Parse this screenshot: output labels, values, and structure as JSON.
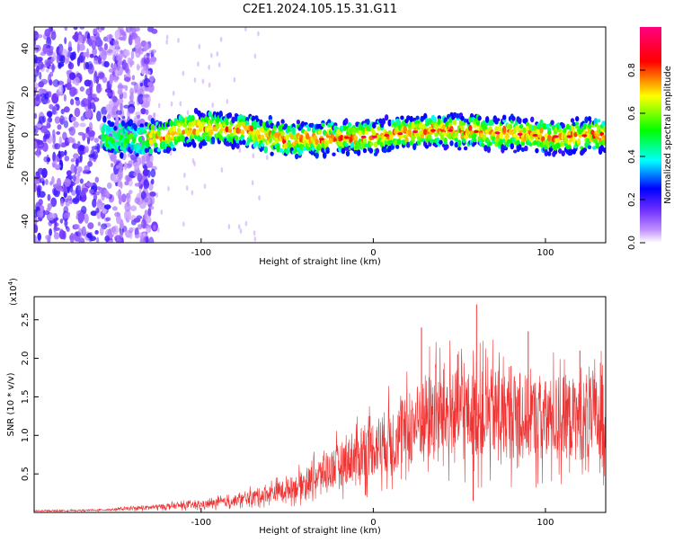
{
  "figure_title": "C2E1.2024.105.15.31.G11",
  "chart_data": [
    {
      "type": "heatmap",
      "xlabel": "Height of straight line (km)",
      "ylabel": "Frequency (Hz)",
      "xlim": [
        -197,
        135
      ],
      "ylim": [
        -50,
        50
      ],
      "xticks": [
        -100,
        0,
        100
      ],
      "yticks": [
        -40,
        -20,
        0,
        20,
        40
      ],
      "colorbar": {
        "label": "Normalized spectral amplitude",
        "range": [
          0,
          1
        ],
        "ticks": [
          0.0,
          0.2,
          0.4,
          0.6,
          0.8
        ],
        "colors": [
          "#ffffff",
          "#a060ff",
          "#0000ff",
          "#00ffff",
          "#00ff00",
          "#ffff00",
          "#ff0000",
          "#ff0080"
        ]
      },
      "ridge": {
        "x": [
          -157,
          -140,
          -120,
          -110,
          -90,
          -70,
          -50,
          -30,
          -10,
          0,
          10,
          30,
          50,
          70,
          90,
          110,
          130
        ],
        "frequency": [
          -1,
          -2,
          -1,
          3,
          3,
          1,
          -2,
          -2,
          -1,
          -1,
          0,
          2,
          2,
          1,
          0,
          -1,
          0
        ]
      }
    },
    {
      "type": "line",
      "xlabel": "Height of straight line (km)",
      "ylabel": "SNR (10 * v/v)",
      "y_scale_label": "(x10",
      "y_scale_exp": "4",
      "y_scale_close": ")",
      "xlim": [
        -197,
        135
      ],
      "ylim": [
        0,
        2.8
      ],
      "xticks": [
        -100,
        0,
        100
      ],
      "yticks": [
        0.5,
        1.0,
        1.5,
        2.0,
        2.5
      ],
      "color": "#ee3333",
      "series": [
        {
          "x": [
            -197,
            -160,
            -140,
            -120,
            -100,
            -80,
            -60,
            -50,
            -40,
            -30,
            -20,
            -10,
            0,
            10,
            20,
            30,
            40,
            50,
            60,
            70,
            80,
            90,
            100,
            110,
            120,
            135
          ],
          "y": [
            0.02,
            0.03,
            0.05,
            0.08,
            0.1,
            0.15,
            0.25,
            0.3,
            0.38,
            0.5,
            0.62,
            0.72,
            0.85,
            0.95,
            1.05,
            1.25,
            1.3,
            1.3,
            1.25,
            1.3,
            1.25,
            1.25,
            1.2,
            1.25,
            1.2,
            1.25
          ],
          "spikes_x": [
            60,
            28,
            90,
            58,
            49,
            120,
            80
          ],
          "spikes_y": [
            2.7,
            2.4,
            2.35,
            0.15,
            2.05,
            2.1,
            1.9
          ]
        }
      ]
    }
  ]
}
